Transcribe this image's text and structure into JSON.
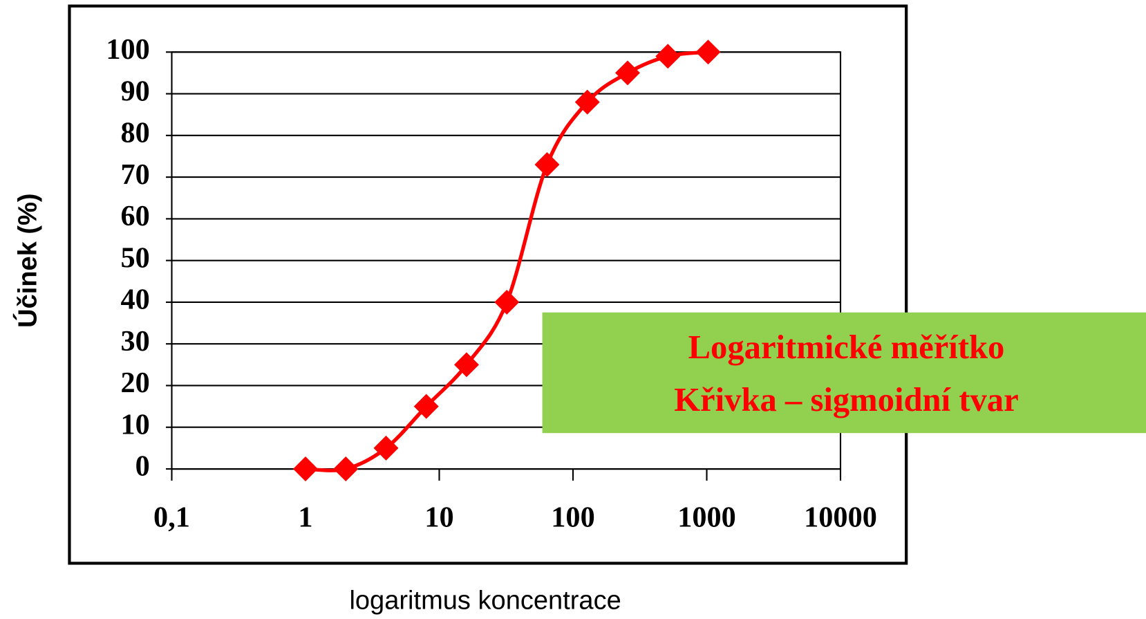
{
  "chart_data": {
    "type": "line",
    "x": [
      1,
      2,
      4,
      8,
      16,
      32,
      64,
      128,
      256,
      512,
      1024
    ],
    "values": [
      0,
      0,
      5,
      15,
      25,
      40,
      73,
      88,
      95,
      99,
      100
    ],
    "color": "#ff0000",
    "xlabel": "logaritmus koncentrace",
    "ylabel": "Účinek (%)",
    "xlog": true,
    "xlim": [
      0.1,
      10000
    ],
    "xticks": [
      {
        "value": 0.1,
        "label": "0,1"
      },
      1,
      10,
      100,
      1000,
      10000
    ],
    "ylim": [
      0,
      100
    ],
    "yticks": [
      0,
      10,
      20,
      30,
      40,
      50,
      60,
      70,
      80,
      90,
      100
    ],
    "grid": true,
    "annotation": [
      "Logaritmické měřítko",
      "Křivka – sigmoidní tvar"
    ],
    "annotation_box_color": "#92d050"
  }
}
